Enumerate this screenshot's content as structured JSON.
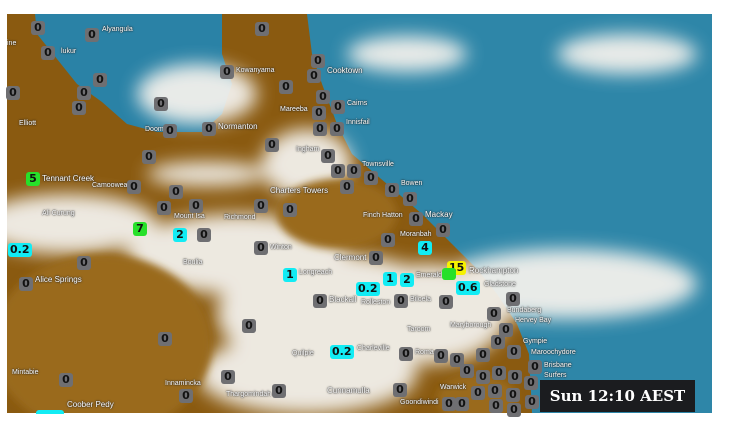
{
  "timestamp": "Sun 12:10 AEST",
  "colors": {
    "rain_0": "#6f6f72",
    "rain_light": "#12ecf4",
    "rain_moderate": "#27e02a",
    "rain_heavy": "#f6f200",
    "land": "#8a5a10",
    "sea": "#2e86a8",
    "cloud": "#f4f2ee"
  },
  "places": [
    "ine",
    "lukur",
    "Alyangula",
    "Kowanyama",
    "Cooktown",
    "Mareeba",
    "Cairns",
    "Innisfail",
    "Elliott",
    "Doom",
    "Normanton",
    "Ingham",
    "Townsville",
    "Charters Towers",
    "Bowen",
    "Tennant Creek",
    "Camooweal",
    "Mount Isa",
    "Richmond",
    "Ali Curung",
    "Finch Hatton",
    "Mackay",
    "Boulia",
    "Winton",
    "Moranbah",
    "Clermont",
    "Longreach",
    "Emerald",
    "Rockhampton",
    "Gladstone",
    "Alice Springs",
    "Blackall",
    "Rolleston",
    "Biloela",
    "Bundaberg",
    "Hervey Bay",
    "Taroom",
    "Maryborough",
    "Gympie",
    "Maroochydore",
    "Roma",
    "Quilpie",
    "Charleville",
    "Mintabie",
    "Innamincka",
    "Thargomindah",
    "Cunnamulla",
    "Goondiwindi",
    "Brisbane",
    "Surfers",
    "Warwick",
    "Coober Pedy"
  ],
  "markers": [
    "0",
    "0",
    "0",
    "0",
    "0",
    "0",
    "0",
    "0",
    "0",
    "0",
    "0",
    "0",
    "0",
    "0",
    "0",
    "0",
    "0",
    "0",
    "0",
    "0",
    "0",
    "0",
    "0",
    "0",
    "0",
    "0",
    "0",
    "0",
    "0",
    "5",
    "7",
    "2",
    "0",
    "0.2",
    "0",
    "0",
    "0",
    "0",
    "0",
    "0",
    "0",
    "0",
    "0",
    "4",
    "0",
    "0",
    "0",
    "15",
    "0",
    "1",
    "1",
    "2",
    "0.2",
    "0.6",
    "0",
    "0",
    "0",
    "0",
    "0",
    "0",
    "0.2",
    "0",
    "0",
    "0",
    "0",
    "0",
    "0",
    "0",
    "0",
    "0",
    "0",
    "0",
    "0",
    "0",
    "0",
    "0",
    "0",
    "0",
    "0",
    "0",
    "0",
    "0",
    "0",
    "0",
    "0",
    "0",
    "0",
    "0"
  ]
}
